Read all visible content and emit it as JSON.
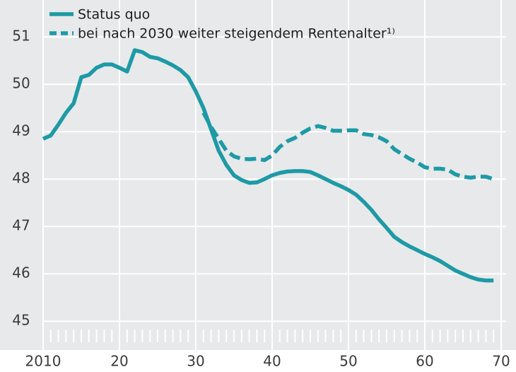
{
  "chart_data": {
    "type": "line",
    "x": [
      2010,
      2011,
      2012,
      2013,
      2014,
      2015,
      2016,
      2017,
      2018,
      2019,
      2020,
      2021,
      2022,
      2023,
      2024,
      2025,
      2026,
      2027,
      2028,
      2029,
      2030,
      2031,
      2032,
      2033,
      2034,
      2035,
      2036,
      2037,
      2038,
      2039,
      2040,
      2041,
      2042,
      2043,
      2044,
      2045,
      2046,
      2047,
      2048,
      2049,
      2050,
      2051,
      2052,
      2053,
      2054,
      2055,
      2056,
      2057,
      2058,
      2059,
      2060,
      2061,
      2062,
      2063,
      2064,
      2065,
      2066,
      2067,
      2068,
      2069
    ],
    "series": [
      {
        "name": "Status quo",
        "color": "#1d9aa6",
        "dash": false,
        "values": [
          48.85,
          48.92,
          49.15,
          49.4,
          49.6,
          50.15,
          50.2,
          50.35,
          50.42,
          50.42,
          50.35,
          50.27,
          50.72,
          50.68,
          50.58,
          50.55,
          50.48,
          50.4,
          50.3,
          50.15,
          49.85,
          49.5,
          49.05,
          48.6,
          48.3,
          48.08,
          47.98,
          47.92,
          47.93,
          48.0,
          48.08,
          48.13,
          48.16,
          48.17,
          48.17,
          48.15,
          48.08,
          48.0,
          47.92,
          47.85,
          47.77,
          47.67,
          47.52,
          47.35,
          47.15,
          46.97,
          46.78,
          46.67,
          46.58,
          46.5,
          46.42,
          46.35,
          46.27,
          46.17,
          46.07,
          46.0,
          45.93,
          45.88,
          45.86,
          45.86
        ]
      },
      {
        "name": "bei nach 2030 weiter steigendem Rentenalter¹⁾",
        "color": "#1d9aa6",
        "dash": true,
        "values": [
          null,
          null,
          null,
          null,
          null,
          null,
          null,
          null,
          null,
          null,
          null,
          null,
          null,
          null,
          null,
          null,
          null,
          null,
          null,
          null,
          null,
          49.4,
          49.1,
          48.85,
          48.6,
          48.48,
          48.43,
          48.42,
          48.43,
          48.4,
          48.5,
          48.68,
          48.8,
          48.87,
          48.98,
          49.07,
          49.12,
          49.08,
          49.02,
          49.02,
          49.03,
          49.03,
          48.95,
          48.93,
          48.88,
          48.8,
          48.63,
          48.53,
          48.43,
          48.35,
          48.25,
          48.22,
          48.22,
          48.2,
          48.1,
          48.05,
          48.03,
          48.05,
          48.05,
          48.0
        ]
      }
    ],
    "xlim": [
      2010,
      2070
    ],
    "xticks": [
      {
        "value": 2010,
        "label": "2010"
      },
      {
        "value": 2020,
        "label": "20"
      },
      {
        "value": 2030,
        "label": "30"
      },
      {
        "value": 2040,
        "label": "40"
      },
      {
        "value": 2050,
        "label": "50"
      },
      {
        "value": 2060,
        "label": "60"
      },
      {
        "value": 2070,
        "label": "70"
      }
    ],
    "ylim": [
      44.6,
      51.75
    ],
    "yticks": [
      45,
      46,
      47,
      48,
      49,
      50,
      51
    ],
    "grid": true,
    "legend": "top-left"
  }
}
